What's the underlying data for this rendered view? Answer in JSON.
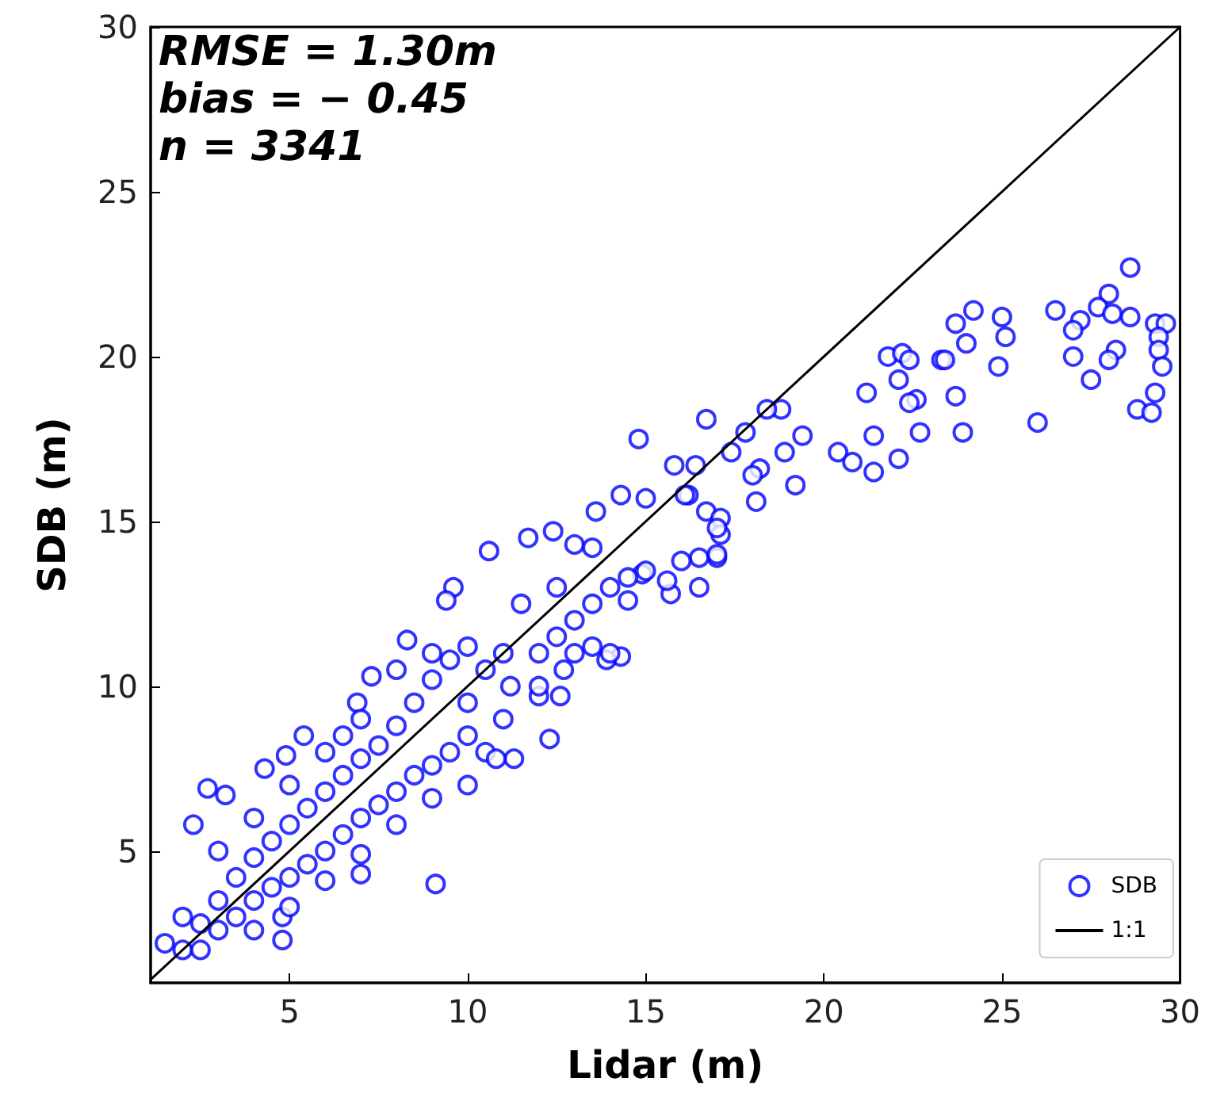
{
  "chart_data": {
    "type": "scatter",
    "xlabel": "Lidar (m)",
    "ylabel": "SDB (m)",
    "annotations": [
      "RMSE = 1.30m",
      "bias = − 0.45",
      "n = 3341"
    ],
    "xlim": [
      1.1,
      30
    ],
    "xticks": [
      5,
      10,
      15,
      20,
      25,
      30
    ],
    "ylim": [
      1,
      30
    ],
    "yticks": [
      5,
      10,
      15,
      20,
      25,
      30
    ],
    "grid": false,
    "legend": "bottom right",
    "marker": "circle",
    "series": [
      {
        "name": "SDB",
        "color": "#0000ff",
        "x": [
          28.6,
          28.0,
          27.7,
          26.5,
          27.2,
          27.0,
          28.1,
          28.6,
          28.2,
          28.0,
          27.0,
          27.5,
          29.3,
          29.6,
          29.4,
          29.4,
          29.5,
          29.3,
          28.8,
          29.2,
          26.0,
          24.2,
          23.7,
          25.0,
          25.1,
          24.0,
          24.9,
          23.7,
          23.9,
          22.7,
          23.3,
          23.4,
          21.8,
          22.2,
          22.4,
          22.1,
          22.6,
          22.4,
          21.2,
          21.4,
          22.1,
          21.4,
          20.4,
          20.8,
          19.4,
          18.9,
          19.2,
          18.8,
          18.4,
          17.8,
          17.4,
          18.2,
          18.0,
          18.1,
          16.7,
          15.8,
          16.4,
          14.8,
          16.2,
          16.7,
          17.1,
          17.1,
          17.0,
          15.7,
          16.5,
          14.9,
          9.1,
          4.8,
          1.5,
          2.3,
          2.7,
          3.2,
          4.3,
          4.9,
          5.4,
          6.5,
          6.9,
          7.3,
          8.3,
          9.6,
          9.4,
          10.6,
          11.7,
          12.4,
          13.6,
          14.3,
          15.0,
          16.1,
          13.0,
          12.3,
          11.3,
          12.6,
          12.0,
          12.7,
          14.3,
          13.9,
          7.0,
          4.8,
          2.0,
          14.5,
          15.6,
          2,
          2.5,
          2.5,
          3,
          3,
          3.5,
          3.5,
          4,
          4,
          4.5,
          4.5,
          5,
          5,
          5.5,
          5.5,
          6,
          6,
          6.5,
          6.5,
          7,
          7,
          7.5,
          7.5,
          8,
          8,
          8.5,
          8.5,
          9,
          9,
          9.5,
          9.5,
          10,
          10,
          10.5,
          10.5,
          11,
          11,
          3,
          4,
          5,
          6,
          7,
          8,
          9,
          10,
          4,
          5,
          6,
          7,
          8,
          9,
          10,
          10.8,
          11.2,
          12,
          12.5,
          13,
          13.5,
          14,
          14.5,
          15,
          16,
          17,
          12,
          13,
          13.5,
          14,
          16.5,
          17,
          11.5,
          12.5,
          13.5
        ],
        "values": [
          22.7,
          21.9,
          21.5,
          21.4,
          21.1,
          20.8,
          21.3,
          21.2,
          20.2,
          19.9,
          20.0,
          19.3,
          21.0,
          21.0,
          20.6,
          20.2,
          19.7,
          18.9,
          18.4,
          18.3,
          18.0,
          21.4,
          21.0,
          21.2,
          20.6,
          20.4,
          19.7,
          18.8,
          17.7,
          17.7,
          19.9,
          19.9,
          20.0,
          20.1,
          19.9,
          19.3,
          18.7,
          18.6,
          18.9,
          17.6,
          16.9,
          16.5,
          17.1,
          16.8,
          17.6,
          17.1,
          16.1,
          18.4,
          18.4,
          17.7,
          17.1,
          16.6,
          16.4,
          15.6,
          18.1,
          16.7,
          16.7,
          17.5,
          15.8,
          15.3,
          15.1,
          14.6,
          13.9,
          12.8,
          13.9,
          13.4,
          4.0,
          2.3,
          2.2,
          5.8,
          6.9,
          6.7,
          7.5,
          7.9,
          8.5,
          8.5,
          9.5,
          10.3,
          11.4,
          13.0,
          12.6,
          14.1,
          14.5,
          14.7,
          15.3,
          15.8,
          15.7,
          15.8,
          14.3,
          8.4,
          7.8,
          9.7,
          9.7,
          10.5,
          10.9,
          10.8,
          4.3,
          3.0,
          3.0,
          12.6,
          13.2,
          2,
          2.8,
          2.0,
          3.5,
          2.6,
          4.2,
          3,
          4.8,
          3.5,
          5.3,
          3.9,
          5.8,
          4.2,
          6.3,
          4.6,
          6.8,
          5.0,
          7.3,
          5.5,
          7.8,
          6,
          8.2,
          6.4,
          8.8,
          6.8,
          9.5,
          7.3,
          10.2,
          7.6,
          10.8,
          8.0,
          11.2,
          8.5,
          10.5,
          8.0,
          11,
          9,
          5,
          6,
          7,
          8,
          9,
          10.5,
          11,
          9.5,
          2.6,
          3.3,
          4.1,
          4.9,
          5.8,
          6.6,
          7.0,
          7.8,
          10,
          11,
          11.5,
          12,
          12.5,
          13,
          13.3,
          13.5,
          13.8,
          14,
          10,
          11,
          11.2,
          11,
          13,
          14.8,
          12.5,
          13,
          14.2
        ]
      },
      {
        "name": "1:1",
        "color": "#000000",
        "type": "line",
        "marker": "none",
        "line_style": "solid",
        "x": [
          1.1,
          30
        ],
        "values": [
          1.1,
          30
        ]
      }
    ]
  }
}
